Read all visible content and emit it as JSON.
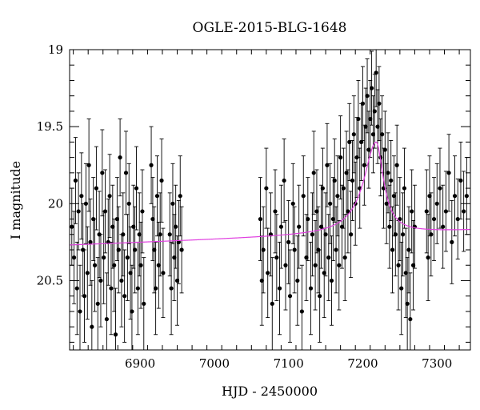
{
  "chart_data": {
    "type": "scatter",
    "title": "OGLE-2015-BLG-1648",
    "xlabel": "HJD - 2450000",
    "ylabel": "I magnitude",
    "xlim": [
      6805,
      7345
    ],
    "ylim": [
      20.95,
      19.0
    ],
    "y_inverted": true,
    "x_ticks": [
      6900,
      7000,
      7100,
      7200,
      7300
    ],
    "x_tick_labels": [
      "6900",
      "7000",
      "7100",
      "7200",
      "7300"
    ],
    "y_ticks": [
      19,
      19.5,
      20,
      20.5
    ],
    "y_tick_labels": [
      "19",
      "19.5",
      "20",
      "20.5"
    ],
    "grid": false,
    "legend": "none",
    "colors": {
      "data": "#000000",
      "model": "#e040e0"
    },
    "series": [
      {
        "kind": "data_with_errorbars",
        "points": [
          [
            6808,
            20.15,
            0.25
          ],
          [
            6811,
            20.35,
            0.3
          ],
          [
            6813,
            19.85,
            0.28
          ],
          [
            6815,
            20.55,
            0.3
          ],
          [
            6817,
            20.05,
            0.25
          ],
          [
            6819,
            20.7,
            0.3
          ],
          [
            6821,
            19.95,
            0.28
          ],
          [
            6823,
            20.3,
            0.3
          ],
          [
            6825,
            20.6,
            0.3
          ],
          [
            6827,
            20.0,
            0.26
          ],
          [
            6829,
            20.45,
            0.3
          ],
          [
            6831,
            19.75,
            0.3
          ],
          [
            6833,
            20.25,
            0.28
          ],
          [
            6835,
            20.8,
            0.3
          ],
          [
            6837,
            20.1,
            0.27
          ],
          [
            6839,
            20.4,
            0.3
          ],
          [
            6841,
            19.9,
            0.27
          ],
          [
            6843,
            20.65,
            0.3
          ],
          [
            6845,
            20.2,
            0.28
          ],
          [
            6847,
            20.5,
            0.3
          ],
          [
            6849,
            19.8,
            0.28
          ],
          [
            6851,
            20.35,
            0.3
          ],
          [
            6853,
            20.05,
            0.27
          ],
          [
            6855,
            20.75,
            0.3
          ],
          [
            6857,
            20.25,
            0.28
          ],
          [
            6859,
            19.95,
            0.27
          ],
          [
            6861,
            20.55,
            0.3
          ],
          [
            6863,
            20.15,
            0.27
          ],
          [
            6865,
            20.4,
            0.3
          ],
          [
            6867,
            20.85,
            0.3
          ],
          [
            6869,
            20.1,
            0.27
          ],
          [
            6871,
            20.3,
            0.28
          ],
          [
            6873,
            19.7,
            0.25
          ],
          [
            6875,
            20.5,
            0.3
          ],
          [
            6877,
            20.2,
            0.27
          ],
          [
            6879,
            20.6,
            0.3
          ],
          [
            6881,
            19.8,
            0.27
          ],
          [
            6883,
            20.35,
            0.28
          ],
          [
            6885,
            20.0,
            0.26
          ],
          [
            6887,
            20.45,
            0.3
          ],
          [
            6889,
            20.7,
            0.3
          ],
          [
            6891,
            20.15,
            0.27
          ],
          [
            6893,
            20.3,
            0.28
          ],
          [
            6895,
            19.9,
            0.27
          ],
          [
            6897,
            20.55,
            0.3
          ],
          [
            6899,
            20.2,
            0.27
          ],
          [
            6901,
            20.4,
            0.28
          ],
          [
            6903,
            20.05,
            0.27
          ],
          [
            6905,
            20.65,
            0.3
          ],
          [
            6915,
            19.75,
            0.25
          ],
          [
            6917,
            20.1,
            0.27
          ],
          [
            6919,
            20.3,
            0.28
          ],
          [
            6921,
            20.55,
            0.3
          ],
          [
            6923,
            19.95,
            0.26
          ],
          [
            6925,
            20.4,
            0.28
          ],
          [
            6927,
            20.2,
            0.27
          ],
          [
            6929,
            19.85,
            0.27
          ],
          [
            6931,
            20.45,
            0.29
          ],
          [
            6940,
            20.2,
            0.27
          ],
          [
            6942,
            20.55,
            0.3
          ],
          [
            6944,
            20.0,
            0.26
          ],
          [
            6946,
            20.35,
            0.28
          ],
          [
            6948,
            20.15,
            0.27
          ],
          [
            6950,
            20.5,
            0.29
          ],
          [
            6952,
            20.25,
            0.27
          ],
          [
            6954,
            19.95,
            0.26
          ],
          [
            6956,
            20.3,
            0.28
          ],
          [
            7062,
            20.1,
            0.27
          ],
          [
            7064,
            20.5,
            0.29
          ],
          [
            7066,
            20.3,
            0.28
          ],
          [
            7070,
            19.9,
            0.26
          ],
          [
            7072,
            20.45,
            0.29
          ],
          [
            7076,
            20.2,
            0.27
          ],
          [
            7078,
            20.65,
            0.3
          ],
          [
            7082,
            20.05,
            0.27
          ],
          [
            7084,
            20.35,
            0.28
          ],
          [
            7088,
            20.55,
            0.3
          ],
          [
            7090,
            20.15,
            0.27
          ],
          [
            7094,
            19.85,
            0.27
          ],
          [
            7096,
            20.4,
            0.29
          ],
          [
            7100,
            20.25,
            0.27
          ],
          [
            7102,
            20.6,
            0.3
          ],
          [
            7106,
            20.0,
            0.26
          ],
          [
            7108,
            20.3,
            0.28
          ],
          [
            7112,
            20.5,
            0.29
          ],
          [
            7114,
            20.15,
            0.27
          ],
          [
            7118,
            20.7,
            0.3
          ],
          [
            7120,
            19.95,
            0.26
          ],
          [
            7124,
            20.35,
            0.28
          ],
          [
            7126,
            20.1,
            0.27
          ],
          [
            7130,
            20.55,
            0.3
          ],
          [
            7132,
            20.2,
            0.27
          ],
          [
            7134,
            19.8,
            0.27
          ],
          [
            7136,
            20.4,
            0.29
          ],
          [
            7138,
            20.05,
            0.27
          ],
          [
            7140,
            20.3,
            0.28
          ],
          [
            7142,
            20.6,
            0.3
          ],
          [
            7144,
            20.15,
            0.27
          ],
          [
            7146,
            19.9,
            0.26
          ],
          [
            7148,
            20.45,
            0.29
          ],
          [
            7150,
            20.2,
            0.27
          ],
          [
            7152,
            19.75,
            0.27
          ],
          [
            7154,
            20.35,
            0.28
          ],
          [
            7156,
            20.0,
            0.26
          ],
          [
            7158,
            20.5,
            0.29
          ],
          [
            7160,
            20.1,
            0.27
          ],
          [
            7162,
            19.85,
            0.27
          ],
          [
            7164,
            20.3,
            0.28
          ],
          [
            7166,
            19.95,
            0.26
          ],
          [
            7168,
            20.4,
            0.29
          ],
          [
            7170,
            19.7,
            0.27
          ],
          [
            7172,
            20.15,
            0.27
          ],
          [
            7174,
            19.9,
            0.26
          ],
          [
            7176,
            20.35,
            0.28
          ],
          [
            7178,
            19.8,
            0.27
          ],
          [
            7180,
            20.05,
            0.27
          ],
          [
            7182,
            19.6,
            0.25
          ],
          [
            7184,
            20.2,
            0.28
          ],
          [
            7186,
            19.85,
            0.26
          ],
          [
            7188,
            19.55,
            0.25
          ],
          [
            7190,
            20.0,
            0.27
          ],
          [
            7192,
            19.7,
            0.26
          ],
          [
            7194,
            19.45,
            0.25
          ],
          [
            7196,
            19.9,
            0.26
          ],
          [
            7198,
            19.6,
            0.25
          ],
          [
            7200,
            19.35,
            0.24
          ],
          [
            7202,
            19.75,
            0.26
          ],
          [
            7204,
            19.5,
            0.25
          ],
          [
            7206,
            19.3,
            0.24
          ],
          [
            7208,
            19.65,
            0.25
          ],
          [
            7210,
            19.45,
            0.25
          ],
          [
            7212,
            19.25,
            0.24
          ],
          [
            7214,
            19.55,
            0.25
          ],
          [
            7216,
            19.4,
            0.24
          ],
          [
            7218,
            19.15,
            0.22
          ],
          [
            7220,
            19.5,
            0.24
          ],
          [
            7222,
            19.35,
            0.24
          ],
          [
            7224,
            19.7,
            0.25
          ],
          [
            7226,
            19.55,
            0.25
          ],
          [
            7228,
            19.9,
            0.26
          ],
          [
            7230,
            19.65,
            0.25
          ],
          [
            7232,
            20.0,
            0.26
          ],
          [
            7234,
            19.8,
            0.26
          ],
          [
            7236,
            20.15,
            0.27
          ],
          [
            7238,
            19.85,
            0.26
          ],
          [
            7240,
            20.3,
            0.28
          ],
          [
            7242,
            19.95,
            0.26
          ],
          [
            7244,
            20.2,
            0.27
          ],
          [
            7246,
            19.75,
            0.26
          ],
          [
            7248,
            20.4,
            0.29
          ],
          [
            7250,
            20.1,
            0.27
          ],
          [
            7252,
            20.55,
            0.3
          ],
          [
            7254,
            20.2,
            0.27
          ],
          [
            7256,
            19.9,
            0.26
          ],
          [
            7258,
            20.45,
            0.29
          ],
          [
            7260,
            20.65,
            0.3
          ],
          [
            7262,
            20.3,
            0.28
          ],
          [
            7264,
            20.75,
            0.3
          ],
          [
            7266,
            20.05,
            0.27
          ],
          [
            7268,
            20.4,
            0.29
          ],
          [
            7270,
            20.15,
            0.27
          ],
          [
            7286,
            20.05,
            0.27
          ],
          [
            7288,
            20.35,
            0.28
          ],
          [
            7290,
            19.95,
            0.26
          ],
          [
            7292,
            20.2,
            0.27
          ],
          [
            7296,
            20.1,
            0.27
          ],
          [
            7300,
            20.0,
            0.26
          ],
          [
            7304,
            19.9,
            0.26
          ],
          [
            7308,
            20.15,
            0.27
          ],
          [
            7312,
            20.05,
            0.26
          ],
          [
            7316,
            19.8,
            0.25
          ],
          [
            7320,
            20.25,
            0.27
          ],
          [
            7324,
            19.95,
            0.26
          ],
          [
            7328,
            20.1,
            0.26
          ],
          [
            7332,
            19.85,
            0.25
          ],
          [
            7336,
            20.05,
            0.26
          ],
          [
            7340,
            19.95,
            0.25
          ]
        ]
      },
      {
        "kind": "model_curve",
        "baseline": 20.27,
        "peak_mag": 19.6,
        "t0": 7218,
        "rise_tau": 20,
        "decay_tau": 12,
        "baseline_slope_per_day": -0.00018
      }
    ]
  }
}
